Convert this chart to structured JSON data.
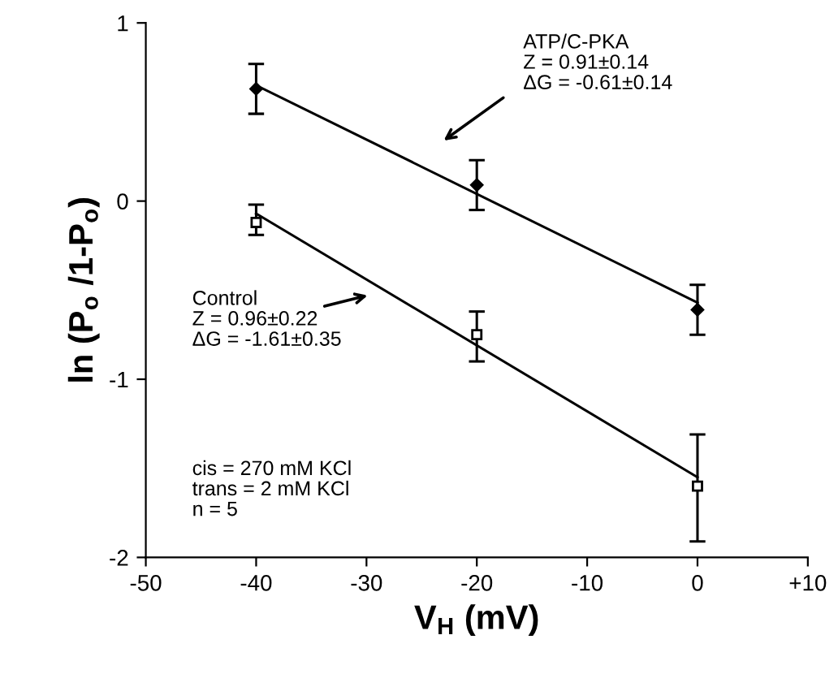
{
  "chart_data": {
    "type": "scatter",
    "xlabel": "V$_{H}$ (mV)",
    "ylabel": "ln (P$_{o}$ /1-P$_{o}$)",
    "xlim": [
      -50,
      10
    ],
    "xticks": [
      -50,
      -40,
      -30,
      -20,
      -10,
      0,
      {
        "value": 10,
        "label": "+10"
      }
    ],
    "ylim": [
      -2,
      1
    ],
    "yticks": [
      -2,
      -1,
      0,
      1
    ],
    "grid": false,
    "series": [
      {
        "marker": "diamond",
        "color": "#000000",
        "x": [
          -40,
          -20,
          0
        ],
        "values": [
          0.63,
          0.09,
          -0.61
        ],
        "errors": [
          0.14,
          0.14,
          0.14
        ]
      },
      {
        "marker": "square",
        "color": "#000000",
        "x": [
          -40,
          -20,
          0
        ],
        "values": [
          -0.12,
          -0.75,
          -1.6
        ],
        "errors": [
          [
            -0.19,
            -0.02
          ],
          [
            -0.9,
            -0.62
          ],
          [
            -1.91,
            -1.31
          ]
        ]
      },
      {
        "type": "line",
        "color": "#000000",
        "x": [
          -40,
          0
        ],
        "values": [
          0.65,
          -0.57
        ]
      },
      {
        "type": "line",
        "color": "#000000",
        "x": [
          -40,
          0
        ],
        "values": [
          -0.07,
          -1.55
        ]
      }
    ],
    "annotations": [
      "ATP/C-PKA\nZ = 0.91±0.14\nΔG = -0.61±0.14",
      "Control\nZ = 0.96±0.22\nΔG = -1.61±0.35",
      "cis = 270 mM KCl\ntrans = 2 mM KCl\nn = 5"
    ]
  }
}
